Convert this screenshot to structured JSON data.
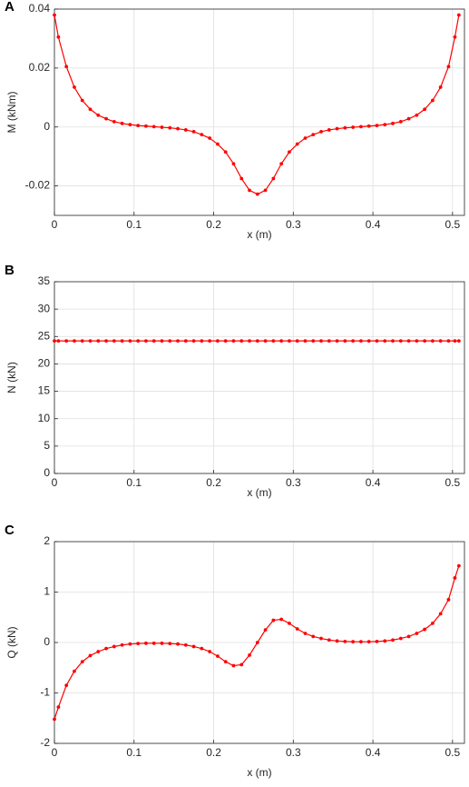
{
  "chart_data": [
    {
      "type": "line",
      "panel": "A",
      "xlabel": "x (m)",
      "ylabel": "M (kNm)",
      "color": "#ff0000",
      "grid": true,
      "xlim": [
        0,
        0.515
      ],
      "xticks": [
        0,
        0.1,
        0.2,
        0.3,
        0.4,
        0.5
      ],
      "ylim": [
        -0.03,
        0.04
      ],
      "yticks": [
        -0.02,
        0,
        0.02,
        0.04
      ],
      "x": [
        0,
        0.005,
        0.015,
        0.025,
        0.035,
        0.045,
        0.055,
        0.065,
        0.075,
        0.085,
        0.095,
        0.105,
        0.115,
        0.125,
        0.135,
        0.145,
        0.155,
        0.165,
        0.175,
        0.185,
        0.195,
        0.205,
        0.215,
        0.225,
        0.235,
        0.245,
        0.255,
        0.265,
        0.275,
        0.285,
        0.295,
        0.305,
        0.315,
        0.325,
        0.335,
        0.345,
        0.355,
        0.365,
        0.375,
        0.385,
        0.395,
        0.405,
        0.415,
        0.425,
        0.435,
        0.445,
        0.455,
        0.465,
        0.475,
        0.485,
        0.495,
        0.503,
        0.508
      ],
      "values": [
        0.038,
        0.0305,
        0.0205,
        0.0135,
        0.009,
        0.006,
        0.004,
        0.0028,
        0.0018,
        0.0012,
        0.0008,
        0.0005,
        0.0003,
        0.0001,
        -0.0001,
        -0.0003,
        -0.0006,
        -0.001,
        -0.0016,
        -0.0026,
        -0.0038,
        -0.0058,
        -0.0085,
        -0.0125,
        -0.0175,
        -0.0215,
        -0.0228,
        -0.0215,
        -0.0175,
        -0.0125,
        -0.0085,
        -0.0058,
        -0.0038,
        -0.0026,
        -0.0016,
        -0.001,
        -0.0006,
        -0.0003,
        -0.0001,
        0.0001,
        0.0003,
        0.0005,
        0.0008,
        0.0012,
        0.0018,
        0.0028,
        0.004,
        0.006,
        0.009,
        0.0135,
        0.0205,
        0.0305,
        0.038
      ]
    },
    {
      "type": "line",
      "panel": "B",
      "xlabel": "x (m)",
      "ylabel": "N (kN)",
      "color": "#ff0000",
      "grid": true,
      "xlim": [
        0,
        0.515
      ],
      "xticks": [
        0,
        0.1,
        0.2,
        0.3,
        0.4,
        0.5
      ],
      "ylim": [
        0,
        35
      ],
      "yticks": [
        0,
        5,
        10,
        15,
        20,
        25,
        30,
        35
      ],
      "x": [
        0,
        0.005,
        0.015,
        0.025,
        0.035,
        0.045,
        0.055,
        0.065,
        0.075,
        0.085,
        0.095,
        0.105,
        0.115,
        0.125,
        0.135,
        0.145,
        0.155,
        0.165,
        0.175,
        0.185,
        0.195,
        0.205,
        0.215,
        0.225,
        0.235,
        0.245,
        0.255,
        0.265,
        0.275,
        0.285,
        0.295,
        0.305,
        0.315,
        0.325,
        0.335,
        0.345,
        0.355,
        0.365,
        0.375,
        0.385,
        0.395,
        0.405,
        0.415,
        0.425,
        0.435,
        0.445,
        0.455,
        0.465,
        0.475,
        0.485,
        0.495,
        0.503,
        0.508
      ],
      "values": [
        24.2,
        24.2,
        24.2,
        24.2,
        24.2,
        24.2,
        24.2,
        24.2,
        24.2,
        24.2,
        24.2,
        24.2,
        24.2,
        24.2,
        24.2,
        24.2,
        24.2,
        24.2,
        24.2,
        24.2,
        24.2,
        24.2,
        24.2,
        24.2,
        24.2,
        24.2,
        24.2,
        24.2,
        24.2,
        24.2,
        24.2,
        24.2,
        24.2,
        24.2,
        24.2,
        24.2,
        24.2,
        24.2,
        24.2,
        24.2,
        24.2,
        24.2,
        24.2,
        24.2,
        24.2,
        24.2,
        24.2,
        24.2,
        24.2,
        24.2,
        24.2,
        24.2,
        24.2
      ]
    },
    {
      "type": "line",
      "panel": "C",
      "xlabel": "x (m)",
      "ylabel": "Q (kN)",
      "color": "#ff0000",
      "grid": true,
      "xlim": [
        0,
        0.515
      ],
      "xticks": [
        0,
        0.1,
        0.2,
        0.3,
        0.4,
        0.5
      ],
      "ylim": [
        -2,
        2
      ],
      "yticks": [
        -2,
        -1,
        0,
        1,
        2
      ],
      "x": [
        0,
        0.005,
        0.015,
        0.025,
        0.035,
        0.045,
        0.055,
        0.065,
        0.075,
        0.085,
        0.095,
        0.105,
        0.115,
        0.125,
        0.135,
        0.145,
        0.155,
        0.165,
        0.175,
        0.185,
        0.195,
        0.205,
        0.215,
        0.225,
        0.235,
        0.245,
        0.255,
        0.265,
        0.275,
        0.285,
        0.295,
        0.305,
        0.315,
        0.325,
        0.335,
        0.345,
        0.355,
        0.365,
        0.375,
        0.385,
        0.395,
        0.405,
        0.415,
        0.425,
        0.435,
        0.445,
        0.455,
        0.465,
        0.475,
        0.485,
        0.495,
        0.503,
        0.508
      ],
      "values": [
        -1.52,
        -1.28,
        -0.85,
        -0.57,
        -0.38,
        -0.26,
        -0.18,
        -0.12,
        -0.08,
        -0.05,
        -0.03,
        -0.02,
        -0.015,
        -0.015,
        -0.015,
        -0.02,
        -0.03,
        -0.05,
        -0.08,
        -0.12,
        -0.18,
        -0.27,
        -0.38,
        -0.46,
        -0.44,
        -0.25,
        0,
        0.25,
        0.44,
        0.46,
        0.38,
        0.27,
        0.18,
        0.12,
        0.08,
        0.05,
        0.03,
        0.02,
        0.015,
        0.015,
        0.015,
        0.02,
        0.03,
        0.05,
        0.08,
        0.12,
        0.18,
        0.26,
        0.38,
        0.57,
        0.85,
        1.28,
        1.52
      ]
    }
  ]
}
